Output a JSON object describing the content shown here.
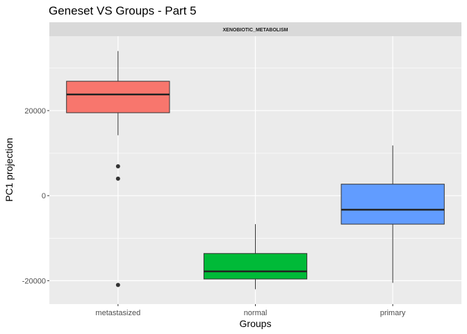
{
  "chart_data": {
    "type": "boxplot",
    "title": "Geneset VS Groups - Part 5",
    "facet_label": "XENOBIOTIC_METABOLISM",
    "xlabel": "Groups",
    "ylabel": "PC1 projection",
    "ylim": [
      -25500,
      37500
    ],
    "y_ticks": [
      -20000,
      0,
      20000
    ],
    "y_tick_labels": [
      "-20000",
      "0",
      "20000"
    ],
    "grid": true,
    "legend": "none",
    "categories": [
      "metastasized",
      "normal",
      "primary"
    ],
    "boxes": [
      {
        "group": "metastasized",
        "color": "#F8766D",
        "whisker_low": 14200,
        "q1": 19500,
        "median": 23800,
        "q3": 26900,
        "whisker_high": 34000,
        "outliers": [
          6900,
          4000,
          -21000
        ]
      },
      {
        "group": "normal",
        "color": "#00BA38",
        "whisker_low": -22000,
        "q1": -19600,
        "median": -17800,
        "q3": -13600,
        "whisker_high": -6700,
        "outliers": []
      },
      {
        "group": "primary",
        "color": "#619CFF",
        "whisker_low": -20500,
        "q1": -6700,
        "median": -3300,
        "q3": 2700,
        "whisker_high": 11800,
        "outliers": []
      }
    ]
  }
}
